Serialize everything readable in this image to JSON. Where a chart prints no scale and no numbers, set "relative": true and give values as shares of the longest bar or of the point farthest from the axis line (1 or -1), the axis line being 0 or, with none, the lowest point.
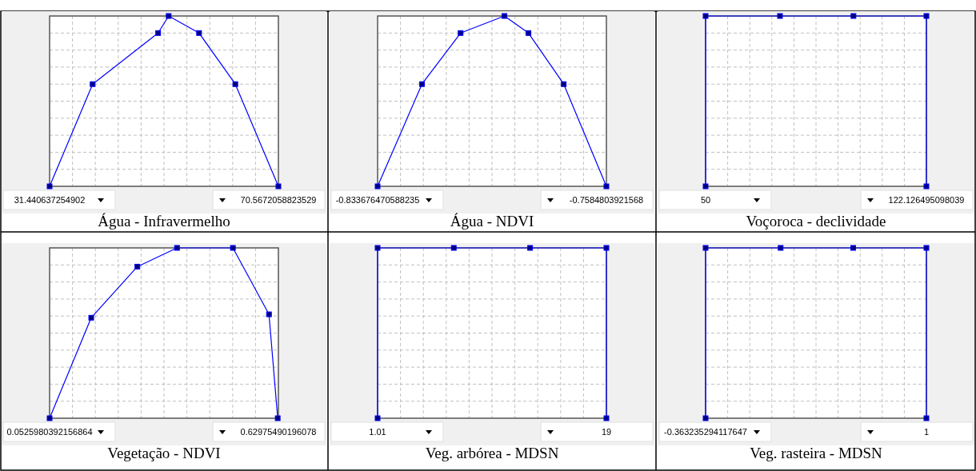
{
  "chart_data": [
    {
      "type": "line",
      "title": "Água - Infravermelho",
      "relative": true,
      "grid": true,
      "marker": "square",
      "tick_labels": "x",
      "xlim": [
        31.440637254902,
        70.5672058823529
      ],
      "xticks": [
        {
          "value": 31.440637254902,
          "label": "31.440637254902"
        },
        {
          "value": 70.5672058823529,
          "label": "70.5672058823529"
        }
      ],
      "series": [
        {
          "color": "#0000ff",
          "x": [
            31.440637254902,
            38.8,
            50.0,
            51.8,
            57.0,
            63.2,
            70.5672058823529
          ],
          "values": [
            0,
            0.6,
            0.9,
            1,
            0.9,
            0.6,
            0
          ]
        }
      ]
    },
    {
      "type": "line",
      "title": "Água - NDVI",
      "relative": true,
      "grid": true,
      "marker": "square",
      "tick_labels": "x",
      "xlim": [
        -0.833676470588235,
        -0.7584803921568
      ],
      "xticks": [
        {
          "value": -0.833676470588235,
          "label": "-0.833676470588235"
        },
        {
          "value": -0.7584803921568,
          "label": "-0.7584803921568"
        }
      ],
      "series": [
        {
          "color": "#0000ff",
          "x": [
            -0.833676470588235,
            -0.8191,
            -0.8064,
            -0.792,
            -0.7841,
            -0.7725,
            -0.7584803921568
          ],
          "values": [
            0,
            0.6,
            0.9,
            1,
            0.9,
            0.6,
            0
          ]
        }
      ]
    },
    {
      "type": "line",
      "title": "Voçoroca - declividade",
      "relative": true,
      "grid": true,
      "marker": "square",
      "tick_labels": "x",
      "xlim": [
        50,
        122.126495098039
      ],
      "xticks": [
        50,
        {
          "value": 122.126495098039,
          "label": "122.126495098039"
        }
      ],
      "series": [
        {
          "color": "#0000ff",
          "x": [
            50,
            50,
            74.3,
            98.3,
            122.126495098039,
            122.126495098039
          ],
          "values": [
            0,
            1,
            1,
            1,
            1,
            0
          ]
        }
      ]
    },
    {
      "type": "line",
      "title": "Vegetação - NDVI",
      "relative": true,
      "grid": true,
      "marker": "square",
      "tick_labels": "x",
      "xlim": [
        0.0525980392156864,
        0.62975490196078
      ],
      "xticks": [
        {
          "value": 0.0525980392156864,
          "label": "0.0525980392156864"
        },
        {
          "value": 0.62975490196078,
          "label": "0.62975490196078"
        }
      ],
      "series": [
        {
          "color": "#0000ff",
          "x": [
            0.0525980392156864,
            0.1576,
            0.274,
            0.374,
            0.515,
            0.606,
            0.628
          ],
          "values": [
            0,
            0.59,
            0.89,
            1,
            1,
            0.61,
            0
          ]
        }
      ]
    },
    {
      "type": "line",
      "title": "Veg. arbórea - MDSN",
      "relative": true,
      "grid": true,
      "marker": "square",
      "tick_labels": "x",
      "xlim": [
        1.01,
        19
      ],
      "xticks": [
        1.01,
        19
      ],
      "series": [
        {
          "color": "#0000ff",
          "x": [
            1.01,
            1.01,
            7.0,
            13.0,
            19,
            19
          ],
          "values": [
            0,
            1,
            1,
            1,
            1,
            0
          ]
        }
      ]
    },
    {
      "type": "line",
      "title": "Veg. rasteira - MDSN",
      "relative": true,
      "grid": true,
      "marker": "square",
      "tick_labels": "x",
      "xlim": [
        -0.363235294117647,
        1
      ],
      "xticks": [
        -0.363235294117647,
        1
      ],
      "series": [
        {
          "color": "#0000ff",
          "x": [
            -0.363235294117647,
            -0.363235294117647,
            0.1,
            0.548,
            1,
            1
          ],
          "values": [
            0,
            1,
            1,
            1,
            1,
            0
          ]
        }
      ]
    }
  ]
}
